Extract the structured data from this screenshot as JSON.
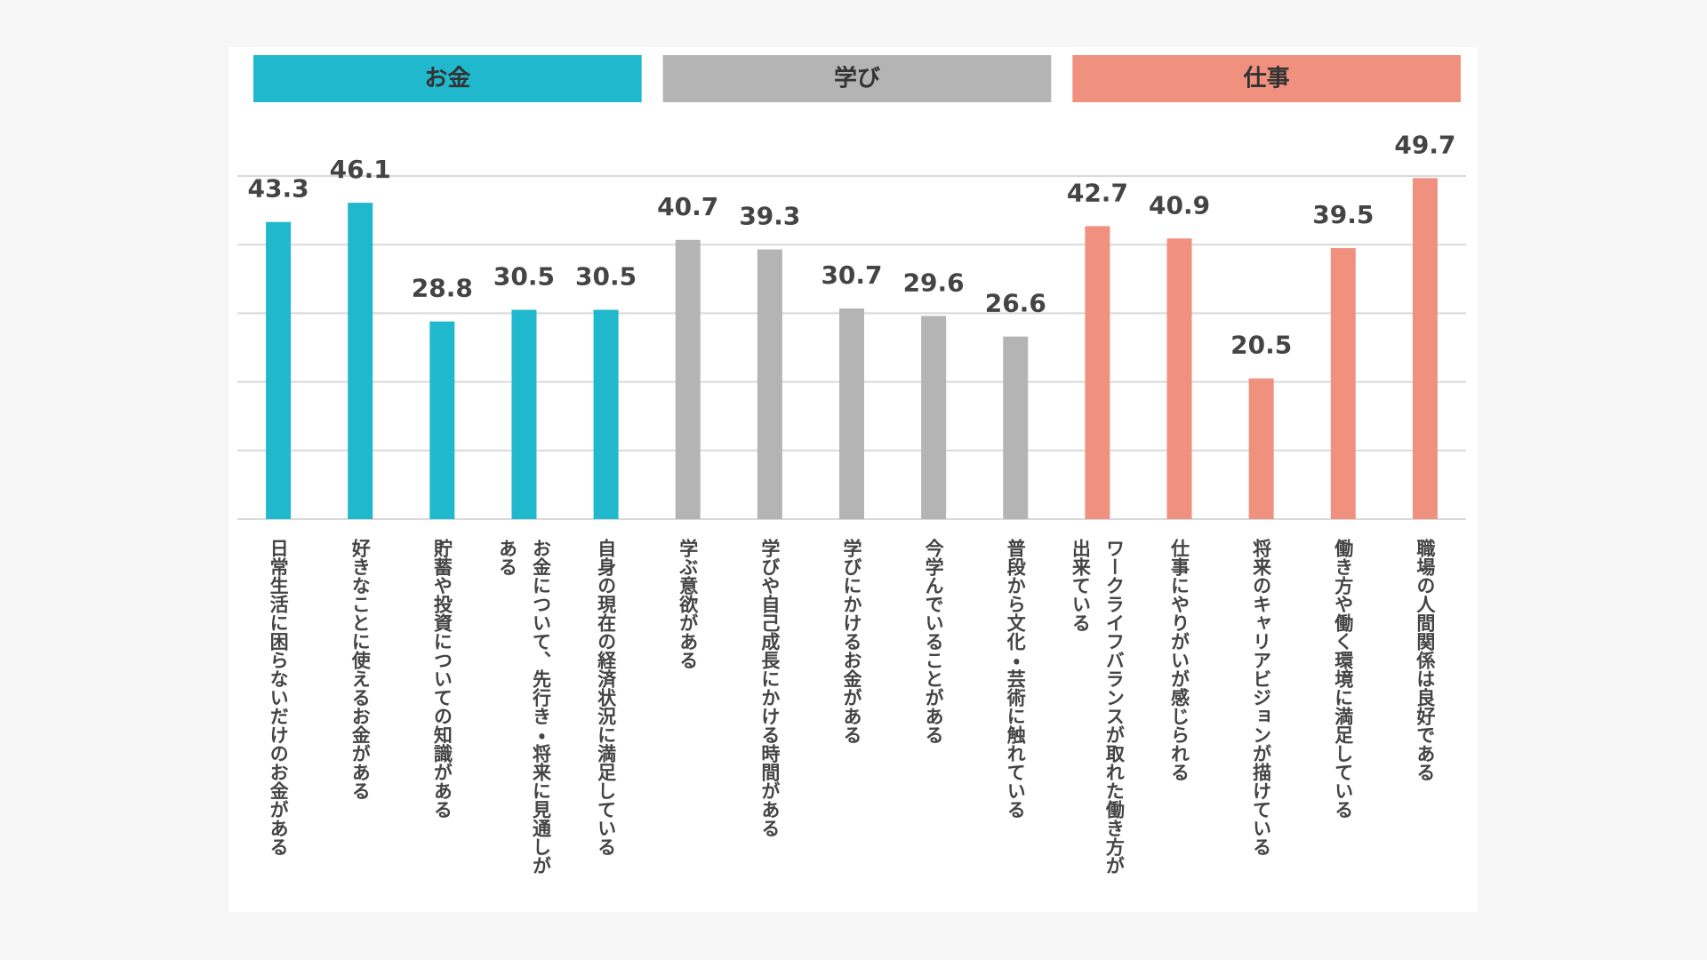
{
  "chart_data": {
    "type": "bar",
    "categories": [
      "日常生活に困らないだけのお金がある",
      "好きなことに使えるお金がある",
      "貯蓄や投資についての知識がある",
      "お金について、先行き・将来に見通しがある",
      "自身の現在の経済状況に満足している",
      "学ぶ意欲がある",
      "学びや自己成長にかける時間がある",
      "学びにかけるお金がある",
      "今学んでいることがある",
      "普段から文化・芸術に触れている",
      "ワークライフバランスが取れた働き方が出来ている",
      "仕事にやりがいが感じられる",
      "将来のキャリアビジョンが描けている",
      "働き方や働く環境に満足している",
      "職場の人間関係は良好である"
    ],
    "series": [
      {
        "name": "お金",
        "color": "#1fb8cc",
        "values": [
          43.3,
          46.1,
          28.8,
          30.5,
          30.5,
          null,
          null,
          null,
          null,
          null,
          null,
          null,
          null,
          null,
          null
        ]
      },
      {
        "name": "学び",
        "color": "#b4b4b5",
        "values": [
          null,
          null,
          null,
          null,
          null,
          40.7,
          39.3,
          30.7,
          29.6,
          26.6,
          null,
          null,
          null,
          null,
          null
        ]
      },
      {
        "name": "仕事",
        "color": "#f0907f",
        "values": [
          null,
          null,
          null,
          null,
          null,
          null,
          null,
          null,
          null,
          null,
          42.7,
          40.9,
          20.5,
          39.5,
          49.7
        ]
      }
    ],
    "ylim": [
      0,
      50
    ],
    "yticks": [
      0,
      10,
      20,
      30,
      40,
      50
    ],
    "grid": true
  }
}
